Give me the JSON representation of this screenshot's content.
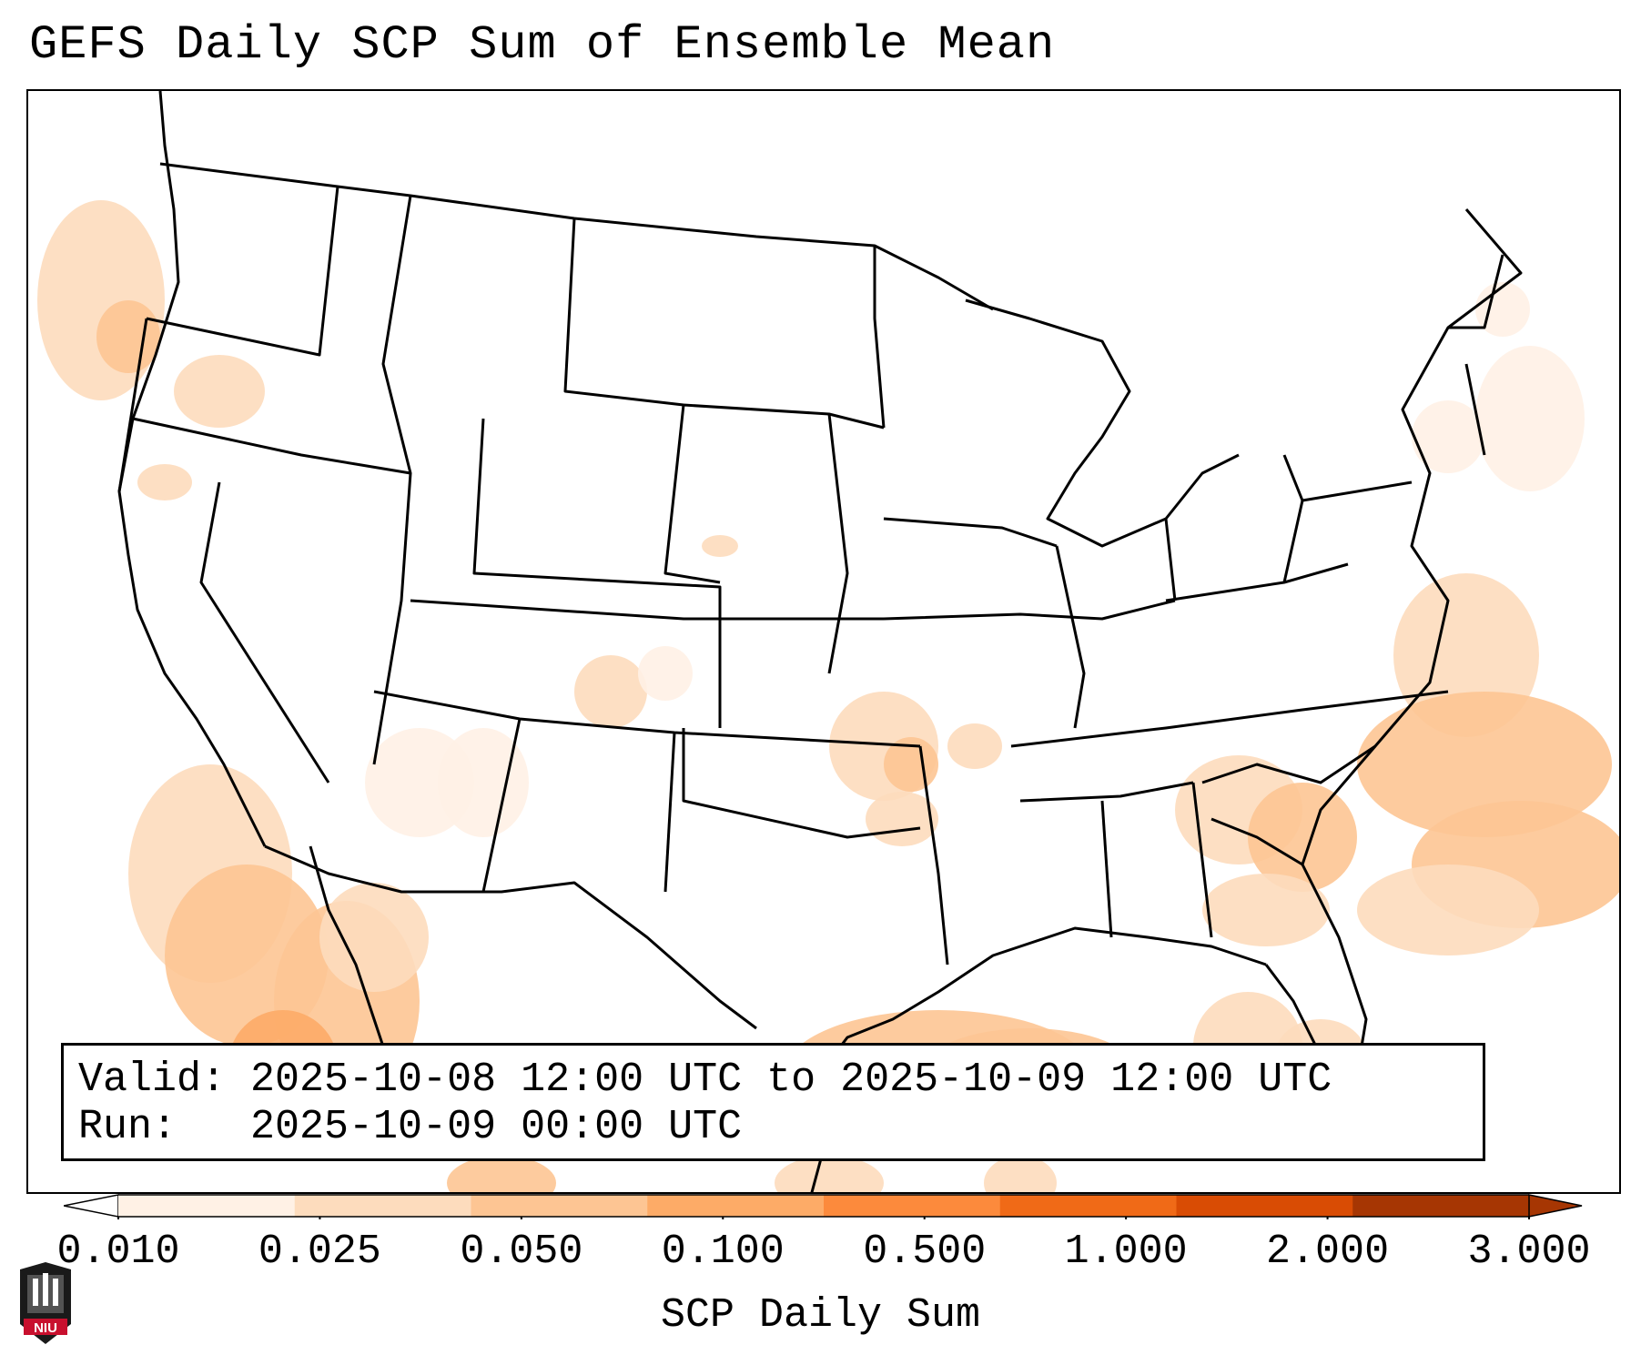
{
  "title": "GEFS Daily SCP Sum of Ensemble Mean",
  "info": {
    "valid_line": "Valid: 2025-10-08 12:00 UTC to 2025-10-09 12:00 UTC",
    "run_line": "Run:   2025-10-09 00:00 UTC"
  },
  "colorbar": {
    "label": "SCP Daily Sum",
    "ticks": [
      "0.010",
      "0.025",
      "0.050",
      "0.100",
      "0.500",
      "1.000",
      "2.000",
      "3.000"
    ],
    "colors": [
      "#fff1e5",
      "#fddcbd",
      "#fdc593",
      "#fdab67",
      "#fc8a3c",
      "#f06a17",
      "#d94c04",
      "#a63603"
    ],
    "extend": "both"
  },
  "map": {
    "projection": "Lambert Conformal (CONUS)",
    "field": "SCP daily sum, ensemble mean",
    "shading_regions": [
      {
        "region": "Gulf of Mexico (north-central)",
        "level": 3
      },
      {
        "region": "Western Atlantic off Carolinas/Georgia",
        "level": 3
      },
      {
        "region": "Gulf of California / Sonora",
        "level": 3
      },
      {
        "region": "Pacific off Baja California",
        "level": 2
      },
      {
        "region": "Southeast US (SC/GA)",
        "level": 2
      },
      {
        "region": "Eastern Oklahoma / Kansas",
        "level": 2
      },
      {
        "region": "Arizona / New Mexico",
        "level": 1
      },
      {
        "region": "Eastern Colorado",
        "level": 1
      },
      {
        "region": "Pacific off Oregon",
        "level": 1
      },
      {
        "region": "New England / Atlantic",
        "level": 1
      }
    ]
  },
  "logo": {
    "text": "NIU",
    "color": "#c8102e"
  }
}
